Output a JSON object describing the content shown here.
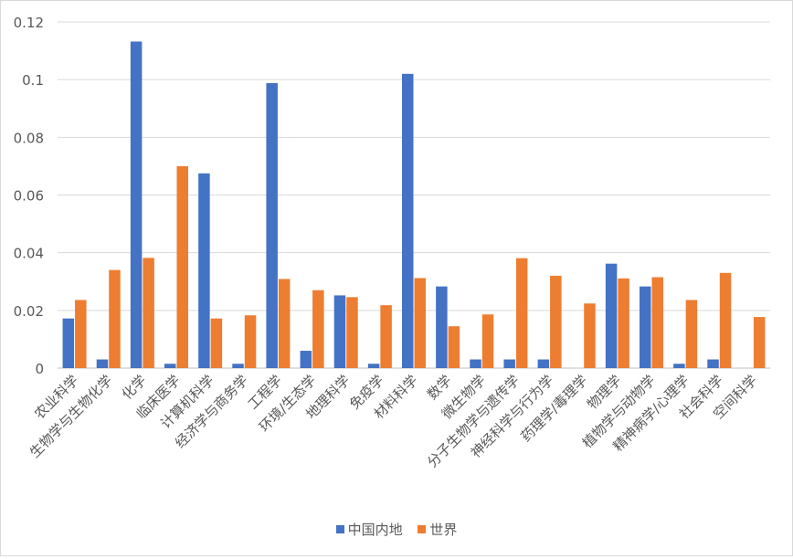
{
  "chart_data": {
    "type": "bar",
    "title": "",
    "xlabel": "",
    "ylabel": "",
    "ylim": [
      0,
      0.12
    ],
    "yticks": [
      "0",
      "0.02",
      "0.04",
      "0.06",
      "0.08",
      "0.1",
      "0.12"
    ],
    "grid": true,
    "legend_position": "bottom",
    "categories": [
      "农业科学",
      "生物学与生物化学",
      "化学",
      "临床医学",
      "计算机科学",
      "经济学与商务学",
      "工程学",
      "环境/生态学",
      "地理科学",
      "免疫学",
      "材料科学",
      "数学",
      "微生物学",
      "分子生物学与遗传学",
      "神经科学与行为学",
      "药理学/毒理学",
      "物理学",
      "植物学与动物学",
      "精神病学/心理学",
      "社会科学",
      "空间科学"
    ],
    "series": [
      {
        "name": "中国内地",
        "color": "#4472c4",
        "values": [
          0.0172,
          0.003,
          0.1132,
          0.0015,
          0.0675,
          0.0015,
          0.0988,
          0.006,
          0.0252,
          0.0015,
          0.102,
          0.0283,
          0.003,
          0.003,
          0.003,
          0.0,
          0.0362,
          0.0283,
          0.0015,
          0.003,
          0.0
        ]
      },
      {
        "name": "世界",
        "color": "#ed7d31",
        "values": [
          0.0236,
          0.034,
          0.0382,
          0.07,
          0.0172,
          0.0183,
          0.0309,
          0.027,
          0.0246,
          0.0218,
          0.0312,
          0.0145,
          0.0186,
          0.0381,
          0.032,
          0.0224,
          0.0311,
          0.0315,
          0.0236,
          0.033,
          0.0177
        ]
      }
    ]
  }
}
